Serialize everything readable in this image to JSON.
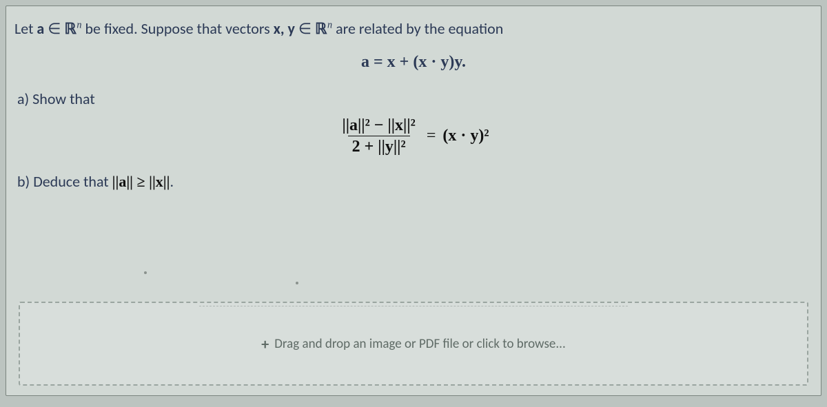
{
  "colors": {
    "page_bg": "#d2d9d5",
    "outer_bg": "#bcc4c0",
    "text_main": "#2c3a56",
    "math_black": "#111111",
    "drop_border": "#9aa5a0",
    "drop_text": "#5f6b66"
  },
  "fonts": {
    "body": "Calibri, 22px",
    "math": "Times New Roman, 24px"
  },
  "intro": {
    "text_plain": "Let a ∈ ℝⁿ be fixed. Suppose that vectors x, y ∈ ℝⁿ are related by the equation",
    "prefix": "Let ",
    "a_sym": "a",
    "elem1": " ∈ ",
    "Rn1": "ℝ",
    "sup_n1": "n",
    "mid": " be fixed. Suppose that vectors ",
    "xy": "x, y",
    "elem2": " ∈ ",
    "Rn2": "ℝ",
    "sup_n2": "n",
    "tail": " are related by the equation"
  },
  "eq1": {
    "text": "a = x + (x · y)y."
  },
  "part_a": {
    "label": "a) Show that"
  },
  "eq2": {
    "numerator": "||a||² − ||x||²",
    "denominator": "2 + ||y||²",
    "equals": " = ",
    "rhs": "(x · y)²"
  },
  "part_b": {
    "prefix": "b) Deduce that ",
    "ineq": "||a|| ≥ ||x||",
    "suffix": "."
  },
  "dropzone": {
    "icon": "+",
    "text": "Drag and drop an image or PDF file or click to browse..."
  }
}
